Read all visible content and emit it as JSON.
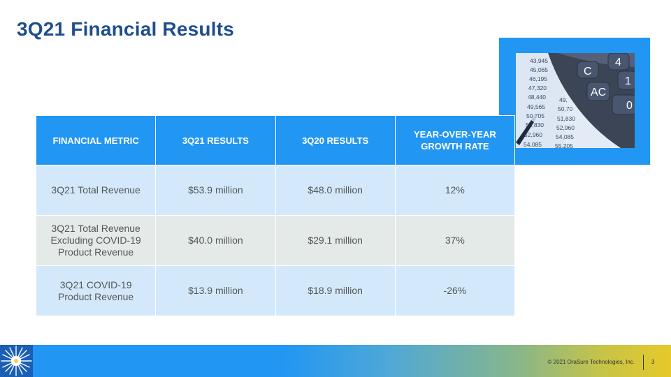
{
  "slide": {
    "title": "3Q21 Financial Results"
  },
  "table": {
    "headers": [
      "FINANCIAL METRIC",
      "3Q21 RESULTS",
      "3Q20 RESULTS",
      "YEAR-OVER-YEAR GROWTH RATE"
    ],
    "rows": [
      [
        "3Q21 Total Revenue",
        "$53.9 million",
        "$48.0 million",
        "12%"
      ],
      [
        "3Q21 Total Revenue Excluding COVID-19 Product Revenue",
        "$40.0 million",
        "$29.1 million",
        "37%"
      ],
      [
        "3Q21 COVID-19 Product Revenue",
        "$13.9 million",
        "$18.9 million",
        "-26%"
      ]
    ]
  },
  "photo": {
    "numbers_left": [
      "43,945",
      "45,065",
      "46,195",
      "47,320",
      "48,440",
      "49,565",
      "50,705",
      "51,830",
      "52,960",
      "54,085"
    ],
    "numbers_right": [
      "49,",
      "50,70",
      "51,830",
      "52,960",
      "54,085",
      "55,205"
    ],
    "keys": [
      "C",
      "AC",
      "4",
      "1",
      "0"
    ]
  },
  "footer": {
    "copyright": "© 2021 OraSure Technologies, Inc.",
    "page_number": "3"
  },
  "colors": {
    "title": "#1f4e8c",
    "accent_blue": "#2196f3",
    "row_blue": "#d3e9fb",
    "row_gray": "#e4eae7"
  }
}
